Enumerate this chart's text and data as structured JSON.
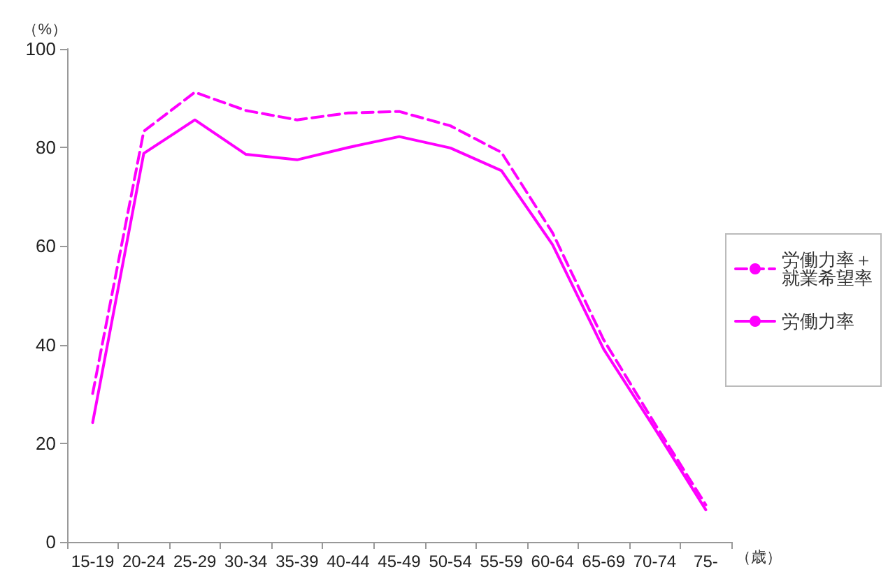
{
  "chart_data": {
    "type": "line",
    "ylabel": "（%）",
    "xlabel": "（歳）",
    "categories": [
      "15-19",
      "20-24",
      "25-29",
      "30-34",
      "35-39",
      "40-44",
      "45-49",
      "50-54",
      "55-59",
      "60-64",
      "65-69",
      "70-74",
      "75-"
    ],
    "series": [
      {
        "name": "労働力率＋就業希望率",
        "color": "#ff00ff",
        "line_style": "dashed",
        "values": [
          30.1,
          83.3,
          91.2,
          87.5,
          85.6,
          87.0,
          87.3,
          84.4,
          79.0,
          62.7,
          41.0,
          24.0,
          7.5
        ]
      },
      {
        "name": "労働力率",
        "color": "#ff00ff",
        "line_style": "solid",
        "values": [
          24.2,
          78.8,
          85.6,
          78.6,
          77.5,
          80.0,
          82.2,
          79.9,
          75.3,
          60.3,
          39.1,
          23.0,
          6.5
        ]
      }
    ],
    "ylim": [
      0,
      100
    ],
    "yticks": [
      0,
      20,
      40,
      60,
      80,
      100
    ],
    "grid": false,
    "legend": "right",
    "marker": "none"
  }
}
